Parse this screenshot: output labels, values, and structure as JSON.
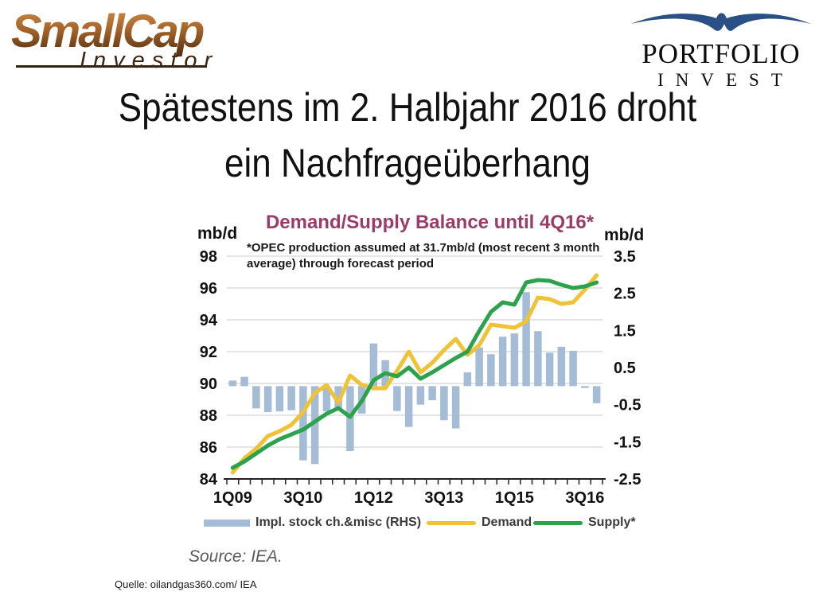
{
  "header": {
    "smallcap_logo": {
      "word": "SmallCap",
      "sub": "Investor"
    },
    "portfolio_logo": {
      "name": "PORTFOLIO",
      "sub": "INVEST"
    }
  },
  "title": {
    "line1": "Spätestens im 2. Halbjahr 2016 droht",
    "line2": "ein Nachfrageüberhang"
  },
  "chart_data": {
    "type": "bar",
    "title": "Demand/Supply Balance until 4Q16*",
    "subtitle_line1": "*OPEC production assumed at 31.7mb/d  (most recent 3 month",
    "subtitle_line2": "average) through forecast period",
    "left_axis": {
      "label": "mb/d",
      "min": 84,
      "max": 98,
      "ticks": [
        98,
        96,
        94,
        92,
        90,
        88,
        86,
        84
      ]
    },
    "right_axis": {
      "label": "mb/d",
      "min": -2.5,
      "max": 3.5,
      "ticks": [
        3.5,
        2.5,
        1.5,
        0.5,
        -0.5,
        -1.5,
        -2.5
      ]
    },
    "grid": true,
    "legend_position": "bottom",
    "categories": [
      "1Q09",
      "2Q09",
      "3Q09",
      "4Q09",
      "1Q10",
      "2Q10",
      "3Q10",
      "4Q10",
      "1Q11",
      "2Q11",
      "3Q11",
      "4Q11",
      "1Q12",
      "2Q12",
      "3Q12",
      "4Q12",
      "1Q13",
      "2Q13",
      "3Q13",
      "4Q13",
      "1Q14",
      "2Q14",
      "3Q14",
      "4Q14",
      "1Q15",
      "2Q15",
      "3Q15",
      "4Q15",
      "1Q16",
      "2Q16",
      "3Q16",
      "4Q16"
    ],
    "x_labels": [
      "1Q09",
      "3Q10",
      "1Q12",
      "3Q13",
      "1Q15",
      "3Q16"
    ],
    "x_label_indices": [
      0,
      6,
      12,
      18,
      24,
      30
    ],
    "bars": {
      "name": "Impl. stock ch.&misc (RHS)",
      "axis": "right",
      "color": "#a5bcd7",
      "values": [
        0.15,
        0.25,
        -0.6,
        -0.7,
        -0.68,
        -0.65,
        -2.0,
        -2.1,
        -0.68,
        -0.64,
        -1.75,
        -0.74,
        1.15,
        0.7,
        -0.67,
        -1.1,
        -0.5,
        -0.38,
        -0.92,
        -1.14,
        0.37,
        1.04,
        0.86,
        1.33,
        1.42,
        2.53,
        1.48,
        0.9,
        1.06,
        0.95,
        -0.05,
        -0.46
      ]
    },
    "series": [
      {
        "name": "Demand",
        "axis": "left",
        "color": "#f0c236",
        "values": [
          84.4,
          85.3,
          85.9,
          86.7,
          87.0,
          87.4,
          88.2,
          89.4,
          89.9,
          88.8,
          90.5,
          89.9,
          89.7,
          89.7,
          90.8,
          92.0,
          90.7,
          91.3,
          92.1,
          92.8,
          91.8,
          92.4,
          93.7,
          93.6,
          93.5,
          93.9,
          95.4,
          95.3,
          95.0,
          95.1,
          95.9,
          96.8
        ]
      },
      {
        "name": "Supply*",
        "axis": "left",
        "color": "#2da24d",
        "values": [
          84.7,
          85.1,
          85.6,
          86.1,
          86.5,
          86.8,
          87.1,
          87.6,
          88.1,
          88.45,
          87.9,
          88.9,
          90.2,
          90.65,
          90.45,
          91.0,
          90.3,
          90.7,
          91.15,
          91.6,
          92.0,
          93.3,
          94.5,
          95.1,
          94.95,
          96.35,
          96.5,
          96.45,
          96.2,
          96.0,
          96.1,
          96.35
        ]
      }
    ],
    "source_note": "Source: IEA."
  },
  "legend": {
    "bars_label": "Impl. stock ch.&misc (RHS)",
    "demand_label": "Demand",
    "supply_label": "Supply*"
  },
  "footer": {
    "quelle": "Quelle: oilandgas360.com/ IEA"
  },
  "colors": {
    "chart_title": "#9c3a6a",
    "bars": "#a5bcd7",
    "demand": "#f0c236",
    "supply": "#2da24d",
    "grid": "#c9c9c9",
    "axis": "#222222",
    "bird_blue": "#2a5085"
  }
}
